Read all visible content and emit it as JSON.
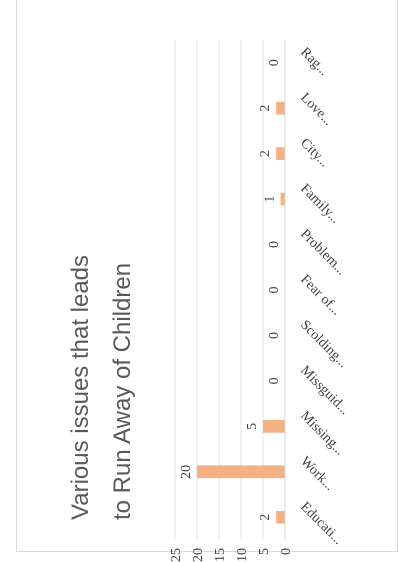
{
  "chart_data": {
    "type": "bar",
    "title_lines": [
      "Various issues that leads",
      "to Run Away of Children"
    ],
    "categories": [
      "Educati...",
      "Work...",
      "Missing...",
      "Missguid...",
      "Scolding...",
      "Fear of...",
      "Problem...",
      "Family...",
      "City...",
      "Love...",
      "Rag..."
    ],
    "values": [
      2,
      20,
      5,
      0,
      0,
      0,
      0,
      1,
      2,
      2,
      0
    ],
    "value_labels": [
      "2",
      "20",
      "5",
      "0",
      "0",
      "0",
      "0",
      "1",
      "2",
      "2",
      "0"
    ],
    "ylim": [
      0,
      25
    ],
    "y_ticks": [
      "0",
      "5",
      "10",
      "15",
      "20",
      "25"
    ],
    "grid": true,
    "legend": "none",
    "orientation": "rotated-90-clockwise"
  },
  "colors": {
    "bar": "#f4b183",
    "grid": "#e6e6e6",
    "text": "#595959",
    "axis_line": "#d9d9d9"
  }
}
